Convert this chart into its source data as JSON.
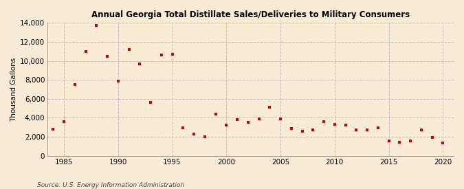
{
  "title": "Annual Georgia Total Distillate Sales/Deliveries to Military Consumers",
  "ylabel": "Thousand Gallons",
  "source": "Source: U.S. Energy Information Administration",
  "background_color": "#faebd7",
  "marker_color": "#cc0000",
  "grid_color": "#bbbbbb",
  "xlim": [
    1983.5,
    2021
  ],
  "ylim": [
    0,
    14000
  ],
  "yticks": [
    0,
    2000,
    4000,
    6000,
    8000,
    10000,
    12000,
    14000
  ],
  "xticks": [
    1985,
    1990,
    1995,
    2000,
    2005,
    2010,
    2015,
    2020
  ],
  "years": [
    1984,
    1985,
    1986,
    1987,
    1988,
    1989,
    1990,
    1991,
    1992,
    1993,
    1994,
    1995,
    1996,
    1997,
    1998,
    1999,
    2000,
    2001,
    2002,
    2003,
    2004,
    2005,
    2006,
    2007,
    2008,
    2009,
    2010,
    2011,
    2012,
    2013,
    2014,
    2015,
    2016,
    2017,
    2018,
    2019,
    2020
  ],
  "values": [
    2800,
    3600,
    7500,
    11000,
    13700,
    10500,
    7900,
    11200,
    9700,
    5600,
    10600,
    10700,
    2950,
    2300,
    2000,
    4400,
    3200,
    3800,
    3500,
    3900,
    5100,
    3900,
    2900,
    2600,
    2700,
    3600,
    3300,
    3200,
    2700,
    2700,
    2950,
    1550,
    1400,
    1550,
    2750,
    1900,
    1350
  ]
}
